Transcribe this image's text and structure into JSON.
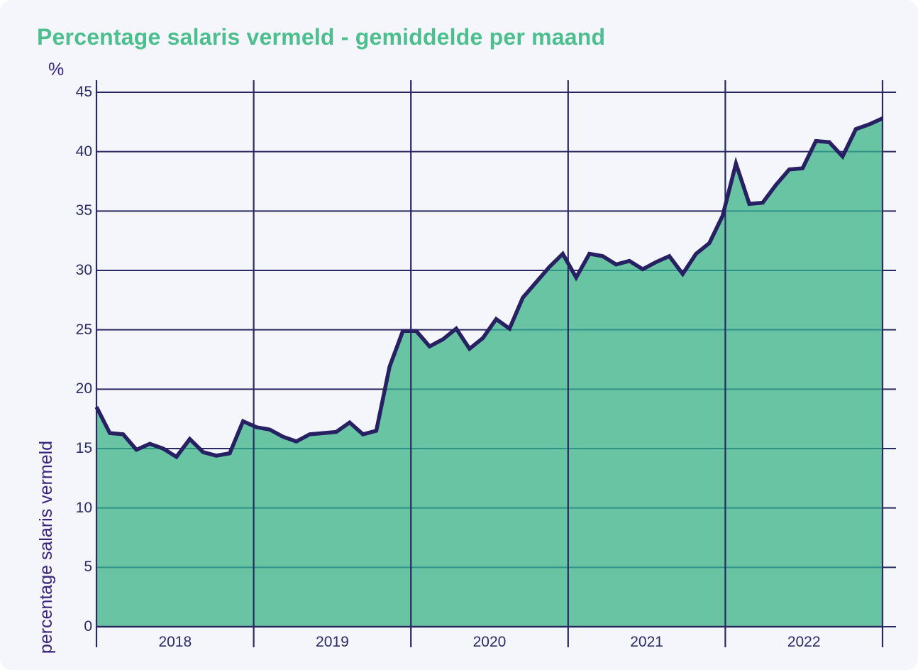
{
  "chart_data": {
    "type": "area",
    "title": "Percentage salaris vermeld - gemiddelde per maand",
    "unit_label": "%",
    "ylabel": "percentage salaris vermeld",
    "xlabel": "",
    "ylim": [
      0,
      45
    ],
    "y_ticks": [
      0,
      5,
      10,
      15,
      20,
      25,
      30,
      35,
      40,
      45
    ],
    "x_tick_labels": [
      "2018",
      "2019",
      "2020",
      "2021",
      "2022"
    ],
    "points_per_year": 12,
    "grid": true,
    "legend": "none",
    "series": [
      {
        "name": "percentage salaris vermeld",
        "values": [
          18.5,
          16.3,
          16.2,
          14.9,
          15.4,
          15.0,
          14.3,
          15.8,
          14.7,
          14.4,
          14.6,
          17.3,
          16.8,
          16.6,
          16.0,
          15.6,
          16.2,
          16.3,
          16.4,
          17.2,
          16.2,
          16.5,
          21.9,
          24.9,
          24.9,
          23.6,
          24.2,
          25.1,
          23.4,
          24.3,
          25.9,
          25.1,
          27.7,
          29.0,
          30.3,
          31.4,
          29.4,
          31.4,
          31.2,
          30.5,
          30.8,
          30.1,
          30.7,
          31.2,
          29.7,
          31.4,
          32.3,
          34.6,
          39.0,
          35.6,
          35.7,
          37.2,
          38.5,
          38.6,
          40.9,
          40.8,
          39.6,
          41.9,
          42.3,
          42.8
        ]
      }
    ],
    "colors": {
      "background": "#f5f6fb",
      "title": "#4dbe8e",
      "area_fill": "#69c4a4",
      "line": "#272164",
      "grid": "#2a2962",
      "grid_over_area": "#2f9486",
      "tick_label": "#2b2a66",
      "axis_title": "#38247f"
    }
  }
}
